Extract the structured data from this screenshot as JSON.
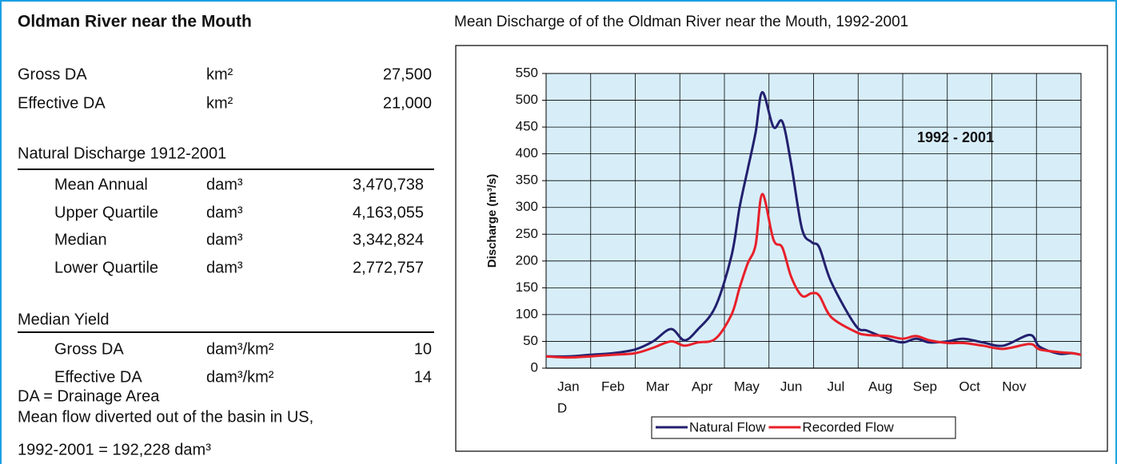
{
  "panel": {
    "title": "Oldman River near the Mouth",
    "drainage": [
      {
        "label": "Gross DA",
        "unit": "km²",
        "value": "27,500"
      },
      {
        "label": "Effective DA",
        "unit": "km²",
        "value": "21,000"
      }
    ],
    "natural_discharge": {
      "heading": "Natural Discharge 1912-2001",
      "rows": [
        {
          "label": "Mean Annual",
          "unit": "dam³",
          "value": "3,470,738"
        },
        {
          "label": "Upper Quartile",
          "unit": "dam³",
          "value": "4,163,055"
        },
        {
          "label": "Median",
          "unit": "dam³",
          "value": "3,342,824"
        },
        {
          "label": "Lower Quartile",
          "unit": "dam³",
          "value": "2,772,757"
        }
      ]
    },
    "median_yield": {
      "heading": "Median Yield",
      "rows": [
        {
          "label": "Gross DA",
          "unit": "dam³/km²",
          "value": "10"
        },
        {
          "label": "Effective DA",
          "unit": "dam³/km²",
          "value": "14"
        }
      ]
    },
    "notes": [
      "DA = Drainage Area",
      "Mean flow diverted out of the basin in US,",
      "1992-2001 = 192,228 dam³"
    ]
  },
  "chart_data": {
    "type": "line",
    "title": "Mean Discharge of of the Oldman River near the Mouth, 1992-2001",
    "y_label": "Discharge (m³/s)",
    "annotation": "1992 - 2001",
    "x": [
      0,
      0.5,
      1,
      1.5,
      2,
      2.4,
      2.8,
      3.1,
      3.4,
      3.8,
      4.16,
      4.34,
      4.52,
      4.7,
      4.85,
      5.1,
      5.3,
      5.5,
      5.74,
      5.96,
      6.13,
      6.4,
      6.94,
      7.2,
      7.66,
      8.0,
      8.3,
      8.6,
      9.0,
      9.36,
      9.8,
      10.26,
      10.85,
      11.07,
      11.5,
      11.8,
      12
    ],
    "series": [
      {
        "name": "Natural Flow",
        "color": "#23206e",
        "values": [
          22,
          22,
          25,
          28,
          35,
          50,
          73,
          52,
          72,
          115,
          210,
          300,
          370,
          440,
          515,
          450,
          460,
          380,
          260,
          235,
          225,
          160,
          80,
          70,
          55,
          48,
          55,
          48,
          50,
          55,
          48,
          42,
          62,
          40,
          27,
          28,
          25
        ]
      },
      {
        "name": "Recorded Flow",
        "color": "#e8202a",
        "values": [
          22,
          20,
          22,
          25,
          28,
          38,
          50,
          42,
          48,
          55,
          100,
          150,
          195,
          230,
          325,
          240,
          225,
          170,
          135,
          140,
          135,
          95,
          68,
          62,
          60,
          55,
          60,
          52,
          47,
          47,
          42,
          36,
          45,
          35,
          30,
          28,
          25
        ]
      }
    ],
    "xlim": [
      0,
      12
    ],
    "xticks": [
      {
        "value": 0,
        "label": "Jan"
      },
      {
        "value": 1,
        "label": "Feb"
      },
      {
        "value": 2,
        "label": "Mar"
      },
      {
        "value": 3,
        "label": "Apr"
      },
      {
        "value": 4,
        "label": "May"
      },
      {
        "value": 5,
        "label": "Jun"
      },
      {
        "value": 6,
        "label": "Jul"
      },
      {
        "value": 7,
        "label": "Aug"
      },
      {
        "value": 8,
        "label": "Sep"
      },
      {
        "value": 9,
        "label": "Oct"
      },
      {
        "value": 10,
        "label": "Nov"
      },
      {
        "value": 11,
        "label": "D"
      }
    ],
    "ylim": [
      0,
      550
    ],
    "yticks": [
      0,
      50,
      100,
      150,
      200,
      250,
      300,
      350,
      400,
      450,
      500,
      550
    ],
    "grid": true,
    "legend": "bottom"
  }
}
